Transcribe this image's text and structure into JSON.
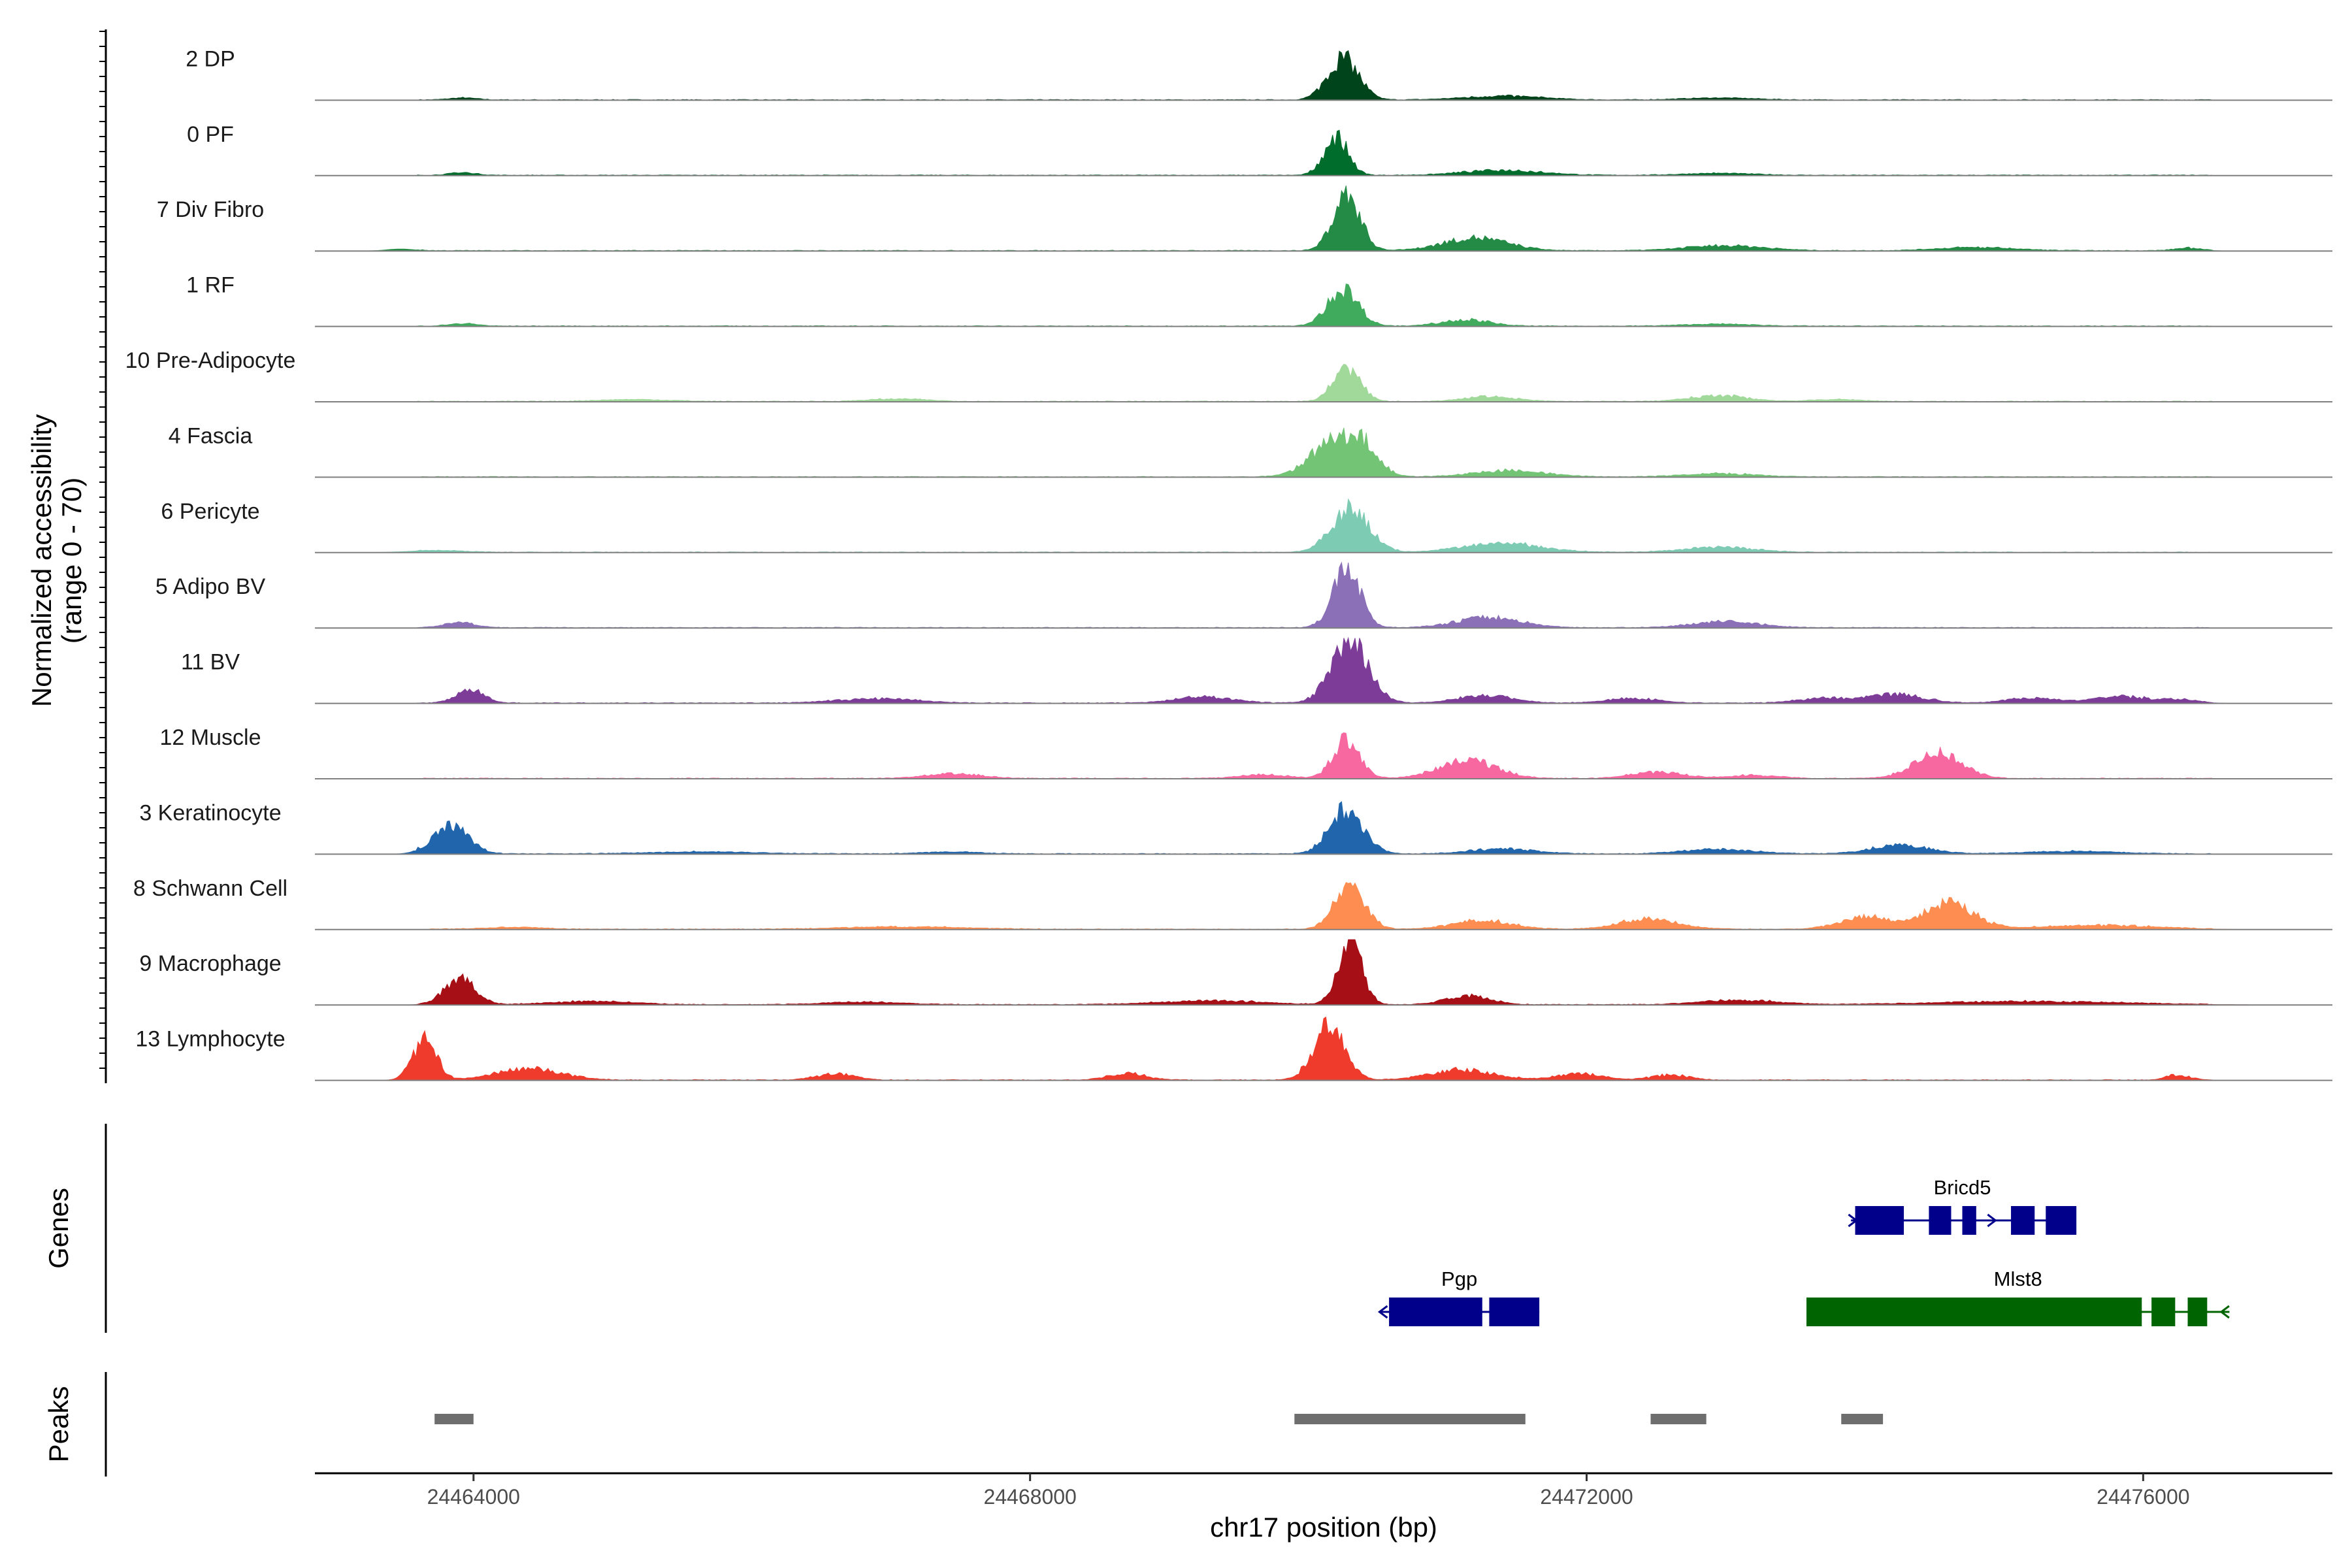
{
  "chart_data": {
    "type": "area",
    "title": "",
    "ylabel": "Normalized accessibility",
    "ylabel_sub": "(range 0 - 70)",
    "y_range": [
      0,
      70
    ],
    "xlabel": "chr17 position (bp)",
    "xlim": [
      24462860,
      24477360
    ],
    "x_ticks": [
      24464000,
      24468000,
      24472000,
      24476000
    ],
    "x_tick_labels": [
      "24464000",
      "24468000",
      "24472000",
      "24476000"
    ],
    "tracks": [
      {
        "name": "2 DP",
        "color": "#00441b",
        "peaks": [
          [
            24463900,
            24463950,
            3
          ],
          [
            24470300,
            24470200,
            66
          ],
          [
            24471000,
            24471800,
            6
          ],
          [
            24472600,
            24473300,
            3
          ]
        ]
      },
      {
        "name": "0 PF",
        "color": "#006d2c",
        "peaks": [
          [
            24463900,
            24463950,
            4
          ],
          [
            24470200,
            24470200,
            60
          ],
          [
            24471000,
            24471800,
            8
          ],
          [
            24472600,
            24473300,
            3
          ]
        ]
      },
      {
        "name": "7 Div Fibro",
        "color": "#238b45",
        "peaks": [
          [
            24463500,
            24463450,
            3
          ],
          [
            24470250,
            24470300,
            88
          ],
          [
            24470900,
            24471500,
            20
          ],
          [
            24472600,
            24473400,
            8
          ],
          [
            24474400,
            24475200,
            5
          ],
          [
            24476300,
            24476350,
            4
          ]
        ]
      },
      {
        "name": "1 RF",
        "color": "#41ab5d",
        "peaks": [
          [
            24463900,
            24463950,
            4
          ],
          [
            24470300,
            24470200,
            58
          ],
          [
            24470950,
            24471300,
            10
          ],
          [
            24472600,
            24473300,
            3
          ]
        ]
      },
      {
        "name": "10 Pre-Adipocyte",
        "color": "#a1d99b",
        "peaks": [
          [
            24464800,
            24465500,
            3
          ],
          [
            24466800,
            24467300,
            4
          ],
          [
            24470300,
            24470250,
            53
          ],
          [
            24471100,
            24471500,
            8
          ],
          [
            24472700,
            24473200,
            9
          ],
          [
            24473600,
            24474000,
            3
          ]
        ]
      },
      {
        "name": "4 Fascia",
        "color": "#74c476",
        "peaks": [
          [
            24470000,
            24470300,
            46
          ],
          [
            24470450,
            24470300,
            48
          ],
          [
            24471100,
            24471800,
            10
          ],
          [
            24472600,
            24473300,
            5
          ]
        ]
      },
      {
        "name": "6 Pericyte",
        "color": "#7ecbb3",
        "peaks": [
          [
            24463500,
            24463950,
            3
          ],
          [
            24470200,
            24470400,
            69
          ],
          [
            24471000,
            24471800,
            14
          ],
          [
            24472600,
            24473300,
            8
          ]
        ]
      },
      {
        "name": "5 Adipo BV",
        "color": "#8b70b8",
        "peaks": [
          [
            24463850,
            24463950,
            8
          ],
          [
            24470300,
            24470250,
            93
          ],
          [
            24471000,
            24471600,
            16
          ],
          [
            24472700,
            24473300,
            10
          ]
        ]
      },
      {
        "name": "11 BV",
        "color": "#7d3c98",
        "peaks": [
          [
            24463950,
            24464000,
            22
          ],
          [
            24466500,
            24467300,
            7
          ],
          [
            24469000,
            24469500,
            10
          ],
          [
            24470400,
            24470200,
            95
          ],
          [
            24471050,
            24471500,
            12
          ],
          [
            24472100,
            24472550,
            7
          ],
          [
            24473500,
            24473900,
            8
          ],
          [
            24474000,
            24474450,
            14
          ],
          [
            24475000,
            24475400,
            8
          ],
          [
            24475600,
            24476100,
            10
          ],
          [
            24476200,
            24476350,
            5
          ]
        ]
      },
      {
        "name": "12 Muscle",
        "color": "#f768a1",
        "peaks": [
          [
            24467200,
            24467700,
            7
          ],
          [
            24469500,
            24469850,
            6
          ],
          [
            24470250,
            24470300,
            60
          ],
          [
            24470900,
            24471400,
            28
          ],
          [
            24472300,
            24472700,
            10
          ],
          [
            24473000,
            24473400,
            5
          ],
          [
            24474350,
            24474700,
            40
          ]
        ]
      },
      {
        "name": "3 Keratinocyte",
        "color": "#2166ac",
        "peaks": [
          [
            24463750,
            24463920,
            44
          ],
          [
            24465000,
            24466300,
            3
          ],
          [
            24467200,
            24467700,
            3
          ],
          [
            24470200,
            24470350,
            72
          ],
          [
            24471100,
            24471700,
            8
          ],
          [
            24472600,
            24473300,
            7
          ],
          [
            24474000,
            24474500,
            14
          ],
          [
            24475000,
            24476000,
            4
          ]
        ]
      },
      {
        "name": "8 Schwann Cell",
        "color": "#fd8d50",
        "peaks": [
          [
            24464000,
            24464550,
            3
          ],
          [
            24466400,
            24467800,
            4
          ],
          [
            24470250,
            24470350,
            68
          ],
          [
            24471000,
            24471500,
            14
          ],
          [
            24472200,
            24472700,
            17
          ],
          [
            24473800,
            24474200,
            20
          ],
          [
            24474400,
            24474800,
            41
          ],
          [
            24475000,
            24476350,
            6
          ]
        ]
      },
      {
        "name": "9 Macrophage",
        "color": "#a50f15",
        "peaks": [
          [
            24463850,
            24463950,
            40
          ],
          [
            24464400,
            24465300,
            5
          ],
          [
            24466400,
            24467200,
            4
          ],
          [
            24468700,
            24469900,
            6
          ],
          [
            24470300,
            24470300,
            97
          ],
          [
            24471000,
            24471300,
            14
          ],
          [
            24472700,
            24473500,
            7
          ],
          [
            24474000,
            24476350,
            5
          ]
        ]
      },
      {
        "name": "13 Lymphocyte",
        "color": "#ef3b2c",
        "peaks": [
          [
            24463650,
            24463650,
            62
          ],
          [
            24464100,
            24464700,
            18
          ],
          [
            24466500,
            24466700,
            10
          ],
          [
            24468600,
            24468800,
            10
          ],
          [
            24470100,
            24470200,
            88
          ],
          [
            24470800,
            24471400,
            16
          ],
          [
            24471800,
            24472100,
            10
          ],
          [
            24472500,
            24472700,
            8
          ],
          [
            24476250,
            24476250,
            8
          ]
        ]
      }
    ],
    "genes": [
      {
        "name": "Bricd5",
        "strand": "+",
        "start": 24473900,
        "end": 24475500,
        "exons": [
          [
            24473930,
            24474280
          ],
          [
            24474460,
            24474620
          ],
          [
            24474700,
            24474800
          ],
          [
            24475050,
            24475220
          ],
          [
            24475300,
            24475520
          ]
        ],
        "color": "#00008b"
      },
      {
        "name": "Pgp",
        "strand": "-",
        "start": 24470510,
        "end": 24471660,
        "exons": [
          [
            24470580,
            24471250
          ],
          [
            24471300,
            24471660
          ]
        ],
        "color": "#00008b"
      },
      {
        "name": "Mlst8",
        "strand": "-",
        "start": 24473580,
        "end": 24476620,
        "exons": [
          [
            24473580,
            24475990
          ],
          [
            24476060,
            24476230
          ],
          [
            24476320,
            24476460
          ]
        ],
        "color": "#006400"
      }
    ],
    "gene_track_label": "Genes",
    "peak_track_label": "Peaks",
    "peak_regions": [
      [
        24463720,
        24464000
      ],
      [
        24469900,
        24471560
      ],
      [
        24472460,
        24472860
      ],
      [
        24473830,
        24474130
      ]
    ]
  }
}
